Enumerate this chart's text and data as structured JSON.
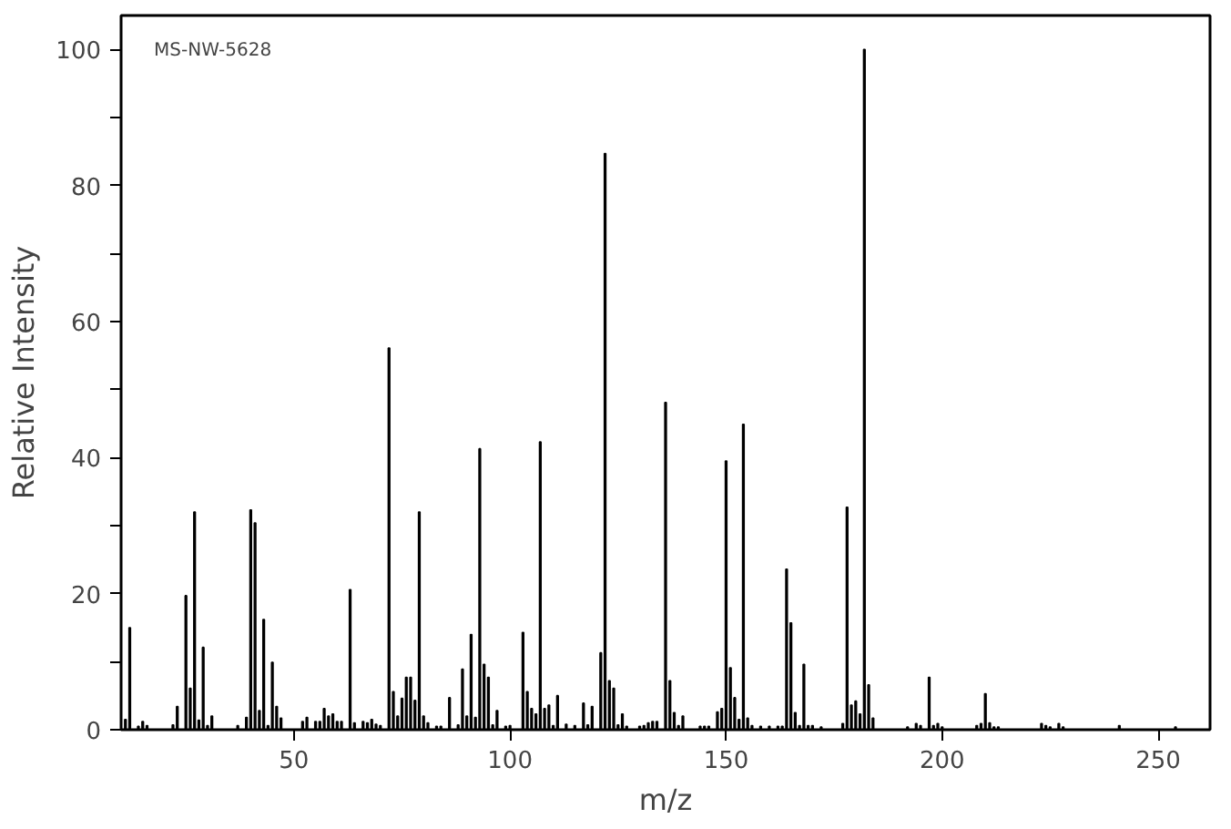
{
  "chart_data": {
    "type": "bar",
    "xlabel": "m/z",
    "ylabel": "Relative Intensity",
    "annotations": [
      "MS-NW-5628"
    ],
    "x": [
      11,
      12,
      14,
      15,
      16,
      22,
      23,
      25,
      26,
      27,
      28,
      29,
      30,
      31,
      37,
      39,
      40,
      41,
      42,
      43,
      44,
      45,
      46,
      47,
      52,
      53,
      55,
      56,
      57,
      58,
      59,
      60,
      61,
      63,
      64,
      66,
      67,
      68,
      69,
      70,
      72,
      73,
      74,
      75,
      76,
      77,
      78,
      79,
      80,
      81,
      83,
      84,
      86,
      88,
      89,
      90,
      91,
      92,
      93,
      94,
      95,
      96,
      97,
      99,
      100,
      103,
      104,
      105,
      106,
      107,
      108,
      109,
      110,
      111,
      113,
      115,
      117,
      118,
      119,
      121,
      122,
      123,
      124,
      125,
      126,
      127,
      130,
      131,
      132,
      133,
      134,
      136,
      137,
      138,
      139,
      140,
      144,
      145,
      146,
      148,
      149,
      150,
      151,
      152,
      153,
      154,
      155,
      156,
      158,
      160,
      162,
      163,
      164,
      165,
      166,
      167,
      168,
      169,
      170,
      172,
      177,
      178,
      179,
      180,
      181,
      182,
      183,
      184,
      192,
      194,
      195,
      197,
      198,
      199,
      200,
      208,
      209,
      210,
      211,
      212,
      213,
      223,
      224,
      225,
      227,
      228,
      241,
      254
    ],
    "values": [
      1.5,
      15.0,
      0.5,
      1.2,
      0.6,
      0.7,
      3.4,
      19.7,
      6.1,
      32.0,
      1.4,
      12.1,
      0.6,
      2.0,
      0.6,
      1.8,
      32.3,
      30.4,
      2.8,
      16.2,
      0.6,
      9.9,
      3.4,
      1.7,
      1.2,
      1.8,
      1.2,
      1.2,
      3.1,
      2.0,
      2.3,
      1.2,
      1.2,
      20.6,
      1.0,
      1.2,
      1.0,
      1.5,
      0.8,
      0.6,
      56.1,
      5.6,
      2.0,
      4.6,
      7.7,
      7.7,
      4.3,
      32.0,
      2.0,
      1.0,
      0.5,
      0.5,
      4.7,
      0.7,
      8.9,
      2.0,
      14.0,
      1.8,
      41.3,
      9.6,
      7.7,
      0.7,
      2.8,
      0.5,
      0.6,
      14.3,
      5.6,
      3.1,
      2.3,
      42.3,
      3.1,
      3.6,
      0.6,
      5.0,
      0.8,
      0.6,
      3.9,
      0.7,
      3.4,
      11.3,
      84.7,
      7.2,
      6.1,
      0.7,
      2.3,
      0.5,
      0.5,
      0.6,
      1.0,
      1.2,
      1.2,
      48.1,
      7.2,
      2.5,
      0.6,
      2.0,
      0.5,
      0.5,
      0.5,
      2.6,
      3.1,
      39.5,
      9.1,
      4.7,
      1.5,
      44.9,
      1.7,
      0.6,
      0.5,
      0.5,
      0.5,
      0.5,
      23.6,
      15.7,
      2.5,
      0.6,
      9.6,
      0.6,
      0.6,
      0.4,
      0.9,
      32.7,
      3.6,
      4.2,
      2.3,
      100,
      6.6,
      1.7,
      0.4,
      0.9,
      0.6,
      7.7,
      0.6,
      0.9,
      0.4,
      0.6,
      0.9,
      5.3,
      1.0,
      0.4,
      0.4,
      0.9,
      0.6,
      0.4,
      0.9,
      0.4,
      0.6,
      0.4
    ],
    "color": "#000000",
    "xlim": [
      10,
      262
    ],
    "xticks": [
      50,
      100,
      150,
      200,
      250
    ],
    "ylim": [
      0,
      105
    ],
    "yticks": [
      0,
      {
        "value": 10,
        "label": null
      },
      20,
      {
        "value": 30,
        "label": null
      },
      40,
      {
        "value": 50,
        "label": null
      },
      60,
      {
        "value": 70,
        "label": null
      },
      80,
      {
        "value": 90,
        "label": null
      },
      100
    ],
    "grid": false
  }
}
